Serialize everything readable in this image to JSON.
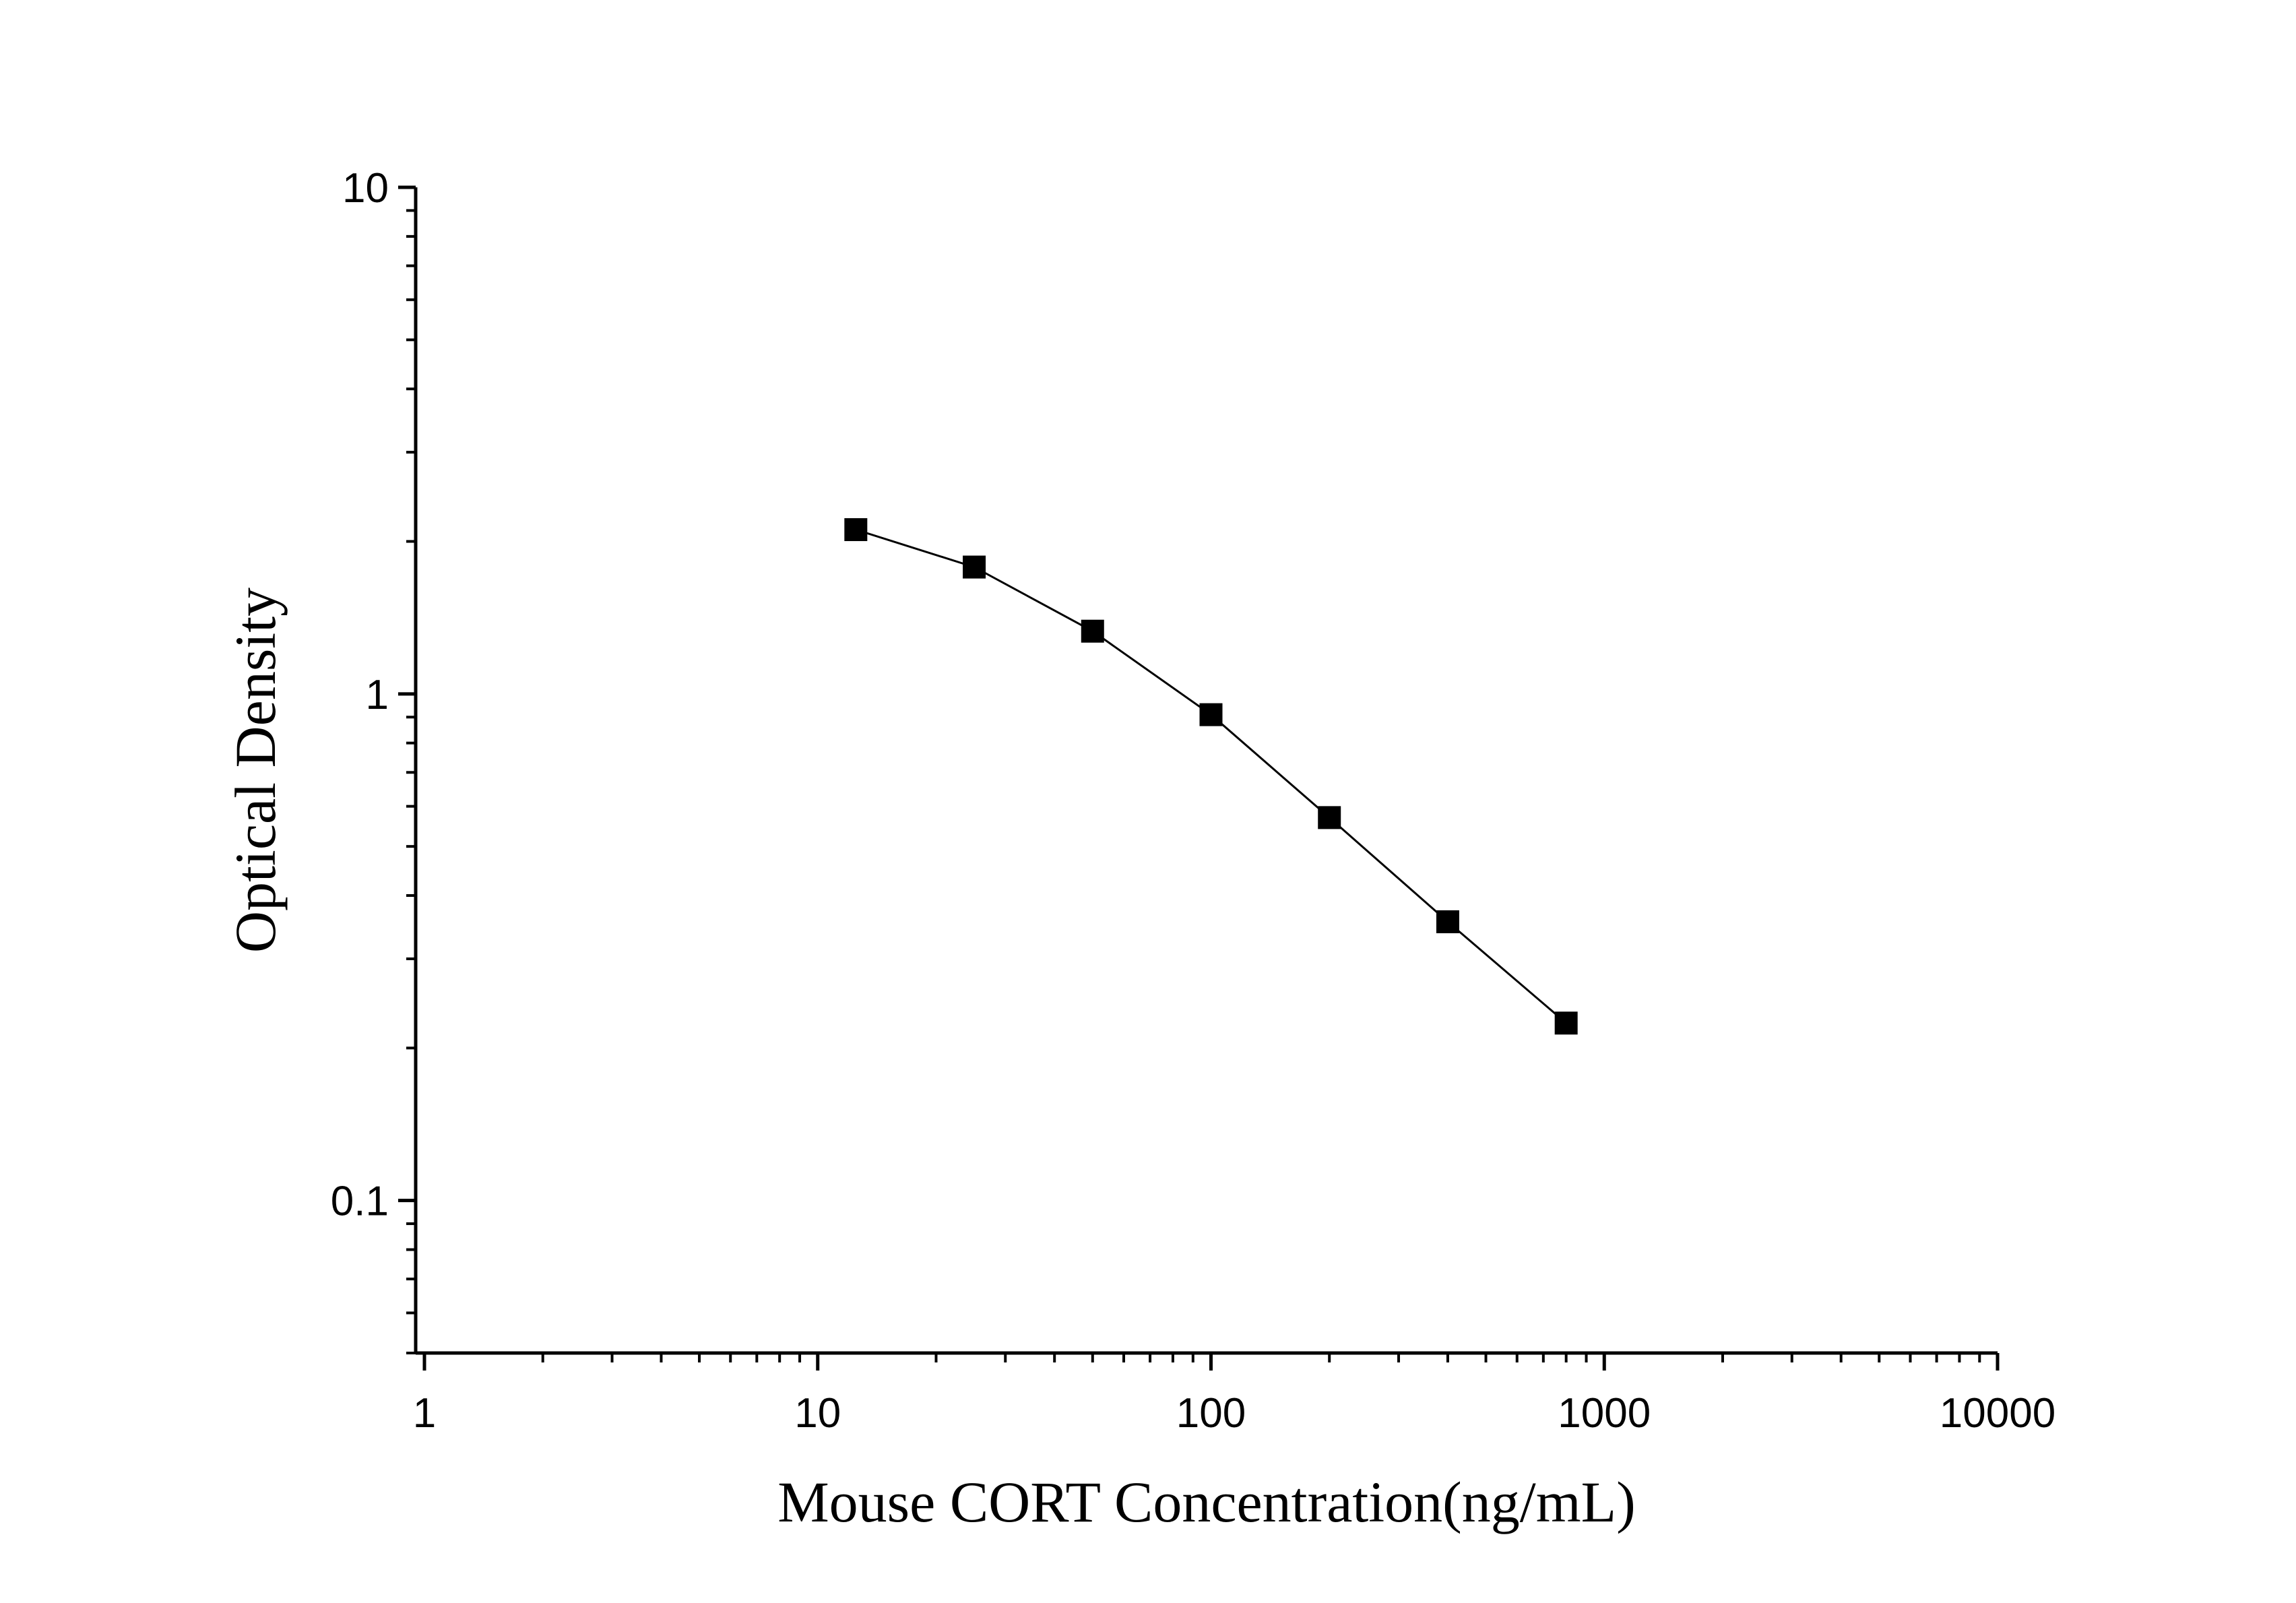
{
  "chart_data": {
    "type": "line",
    "xscale": "log",
    "yscale": "log",
    "xlim": [
      0.95,
      10000
    ],
    "ylim": [
      0.05,
      10
    ],
    "xlabel": "Mouse CORT Concentration(ng/mL)",
    "ylabel": "Optical Density",
    "x_ticks": [
      {
        "value": 1,
        "label": "1"
      },
      {
        "value": 10,
        "label": "10"
      },
      {
        "value": 100,
        "label": "100"
      },
      {
        "value": 1000,
        "label": "1000"
      },
      {
        "value": 10000,
        "label": "10000"
      }
    ],
    "y_ticks": [
      {
        "value": 0.1,
        "label": "0.1"
      },
      {
        "value": 1,
        "label": "1"
      },
      {
        "value": 10,
        "label": "10"
      }
    ],
    "grid": false,
    "marker": "square",
    "color": "#000000",
    "series": [
      {
        "x": [
          12.5,
          25,
          50,
          100,
          200,
          400,
          800
        ],
        "y": [
          2.11,
          1.78,
          1.33,
          0.91,
          0.57,
          0.355,
          0.224
        ]
      }
    ]
  }
}
